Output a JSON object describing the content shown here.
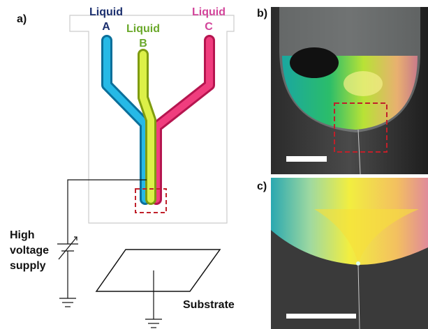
{
  "panel_a": {
    "label": "a)",
    "liquids": [
      {
        "name": "Liquid",
        "letter": "A"
      },
      {
        "name": "Liquid",
        "letter": "B"
      },
      {
        "name": "Liquid",
        "letter": "C"
      }
    ],
    "supply": [
      "High",
      "voltage",
      "supply"
    ],
    "substrate": "Substrate"
  },
  "panel_b": {
    "label": "b)"
  },
  "panel_c": {
    "label": "c)"
  }
}
